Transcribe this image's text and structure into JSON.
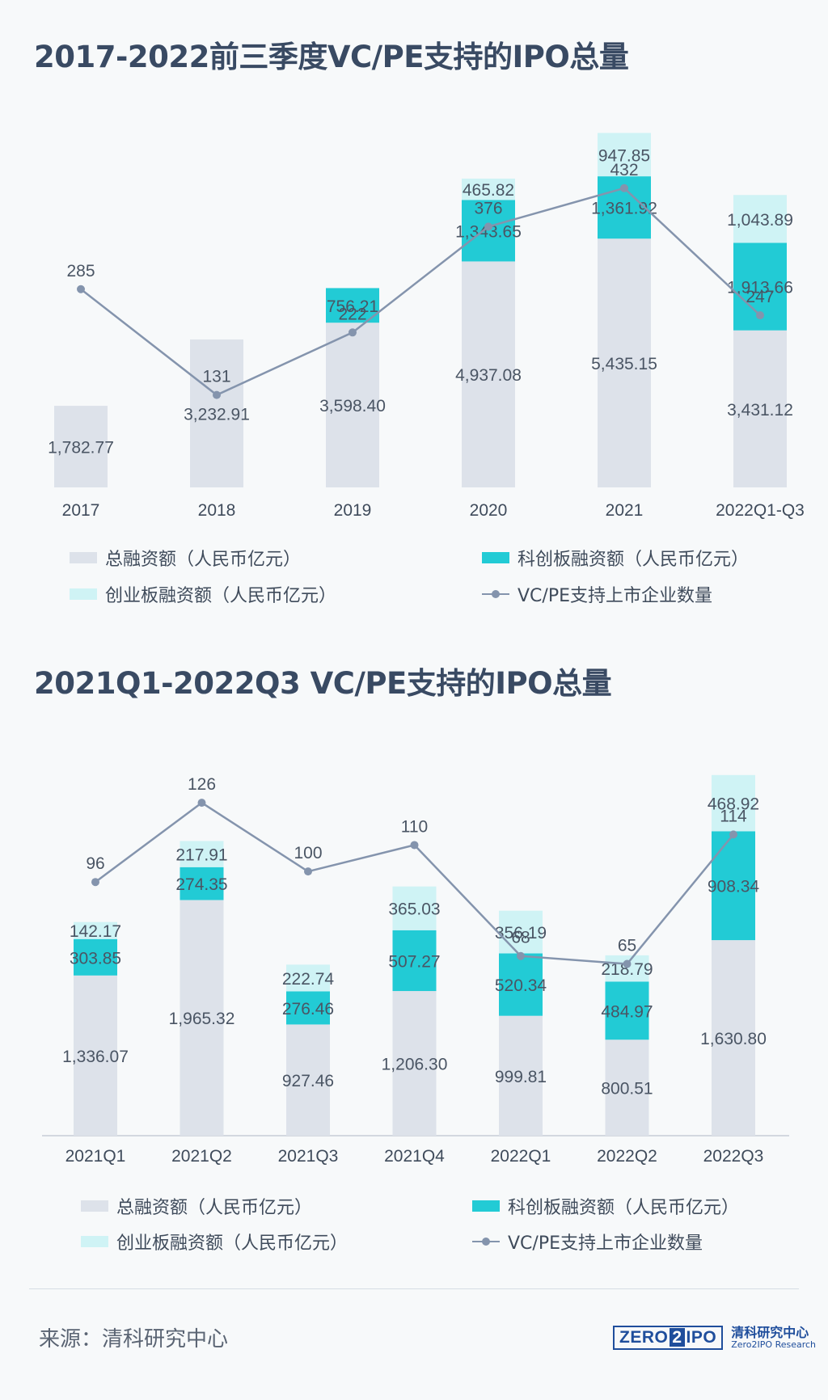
{
  "chart_data": [
    {
      "type": "bar",
      "title": "2017-2022前三季度VC/PE支持的IPO总量",
      "categories": [
        "2017",
        "2018",
        "2019",
        "2020",
        "2021",
        "2022Q1-Q3"
      ],
      "series": [
        {
          "name": "总融资额（人民币亿元）",
          "type": "bar",
          "color": "#dde2ea",
          "values": [
            1782.77,
            3232.91,
            3598.4,
            4937.08,
            5435.15,
            3431.12
          ],
          "labels": [
            "1,782.77",
            "3,232.91",
            "3,598.40",
            "4,937.08",
            "5,435.15",
            "3,431.12"
          ]
        },
        {
          "name": "科创板融资额（人民币亿元）",
          "type": "bar",
          "color": "#22cbd5",
          "values": [
            null,
            null,
            756.21,
            1343.65,
            1361.92,
            1913.66
          ],
          "labels": [
            "",
            "",
            "756.21",
            "1,343.65",
            "1,361.92",
            "1,913.66"
          ]
        },
        {
          "name": "创业板融资额（人民币亿元）",
          "type": "bar",
          "color": "#cff3f5",
          "values": [
            null,
            null,
            null,
            465.82,
            947.85,
            1043.89
          ],
          "labels": [
            "",
            "",
            "",
            "465.82",
            "947.85",
            "1,043.89"
          ]
        },
        {
          "name": "VC/PE支持上市企业数量",
          "type": "line",
          "color": "#8494ad",
          "values": [
            285,
            131,
            222,
            376,
            432,
            247
          ],
          "labels": [
            "285",
            "131",
            "222",
            "376",
            "432",
            "247"
          ]
        }
      ],
      "ylim": [
        0,
        8000
      ],
      "line_ylim": [
        0,
        500
      ],
      "grid": false,
      "legend_position": "bottom"
    },
    {
      "type": "bar",
      "title": "2021Q1-2022Q3 VC/PE支持的IPO总量",
      "categories": [
        "2021Q1",
        "2021Q2",
        "2021Q3",
        "2021Q4",
        "2022Q1",
        "2022Q2",
        "2022Q3"
      ],
      "series": [
        {
          "name": "总融资额（人民币亿元）",
          "type": "bar",
          "color": "#dde2ea",
          "values": [
            1336.07,
            1965.32,
            927.46,
            1206.3,
            999.81,
            800.51,
            1630.8
          ],
          "labels": [
            "1,336.07",
            "1,965.32",
            "927.46",
            "1,206.30",
            "999.81",
            "800.51",
            "1,630.80"
          ]
        },
        {
          "name": "科创板融资额（人民币亿元）",
          "type": "bar",
          "color": "#22cbd5",
          "values": [
            303.85,
            274.35,
            276.46,
            507.27,
            520.34,
            484.97,
            908.34
          ],
          "labels": [
            "303.85",
            "274.35",
            "276.46",
            "507.27",
            "520.34",
            "484.97",
            "908.34"
          ]
        },
        {
          "name": "创业板融资额（人民币亿元）",
          "type": "bar",
          "color": "#cff3f5",
          "values": [
            142.17,
            217.91,
            222.74,
            365.03,
            356.19,
            218.79,
            468.92
          ],
          "labels": [
            "142.17",
            "217.91",
            "222.74",
            "365.03",
            "356.19",
            "218.79",
            "468.92"
          ]
        },
        {
          "name": "VC/PE支持上市企业数量",
          "type": "line",
          "color": "#8494ad",
          "values": [
            96,
            126,
            100,
            110,
            68,
            65,
            114
          ],
          "labels": [
            "96",
            "126",
            "100",
            "110",
            "68",
            "65",
            "114"
          ]
        }
      ],
      "ylim": [
        0,
        3000
      ],
      "line_ylim": [
        0,
        160
      ],
      "grid": false,
      "legend_position": "bottom"
    }
  ],
  "source": "来源：清科研究中心",
  "logo": {
    "mark_left": "ZERO",
    "mark_two": "2",
    "mark_right": "IPO",
    "name_cn": "清科研究中心",
    "name_en": "Zero2IPO Research"
  }
}
